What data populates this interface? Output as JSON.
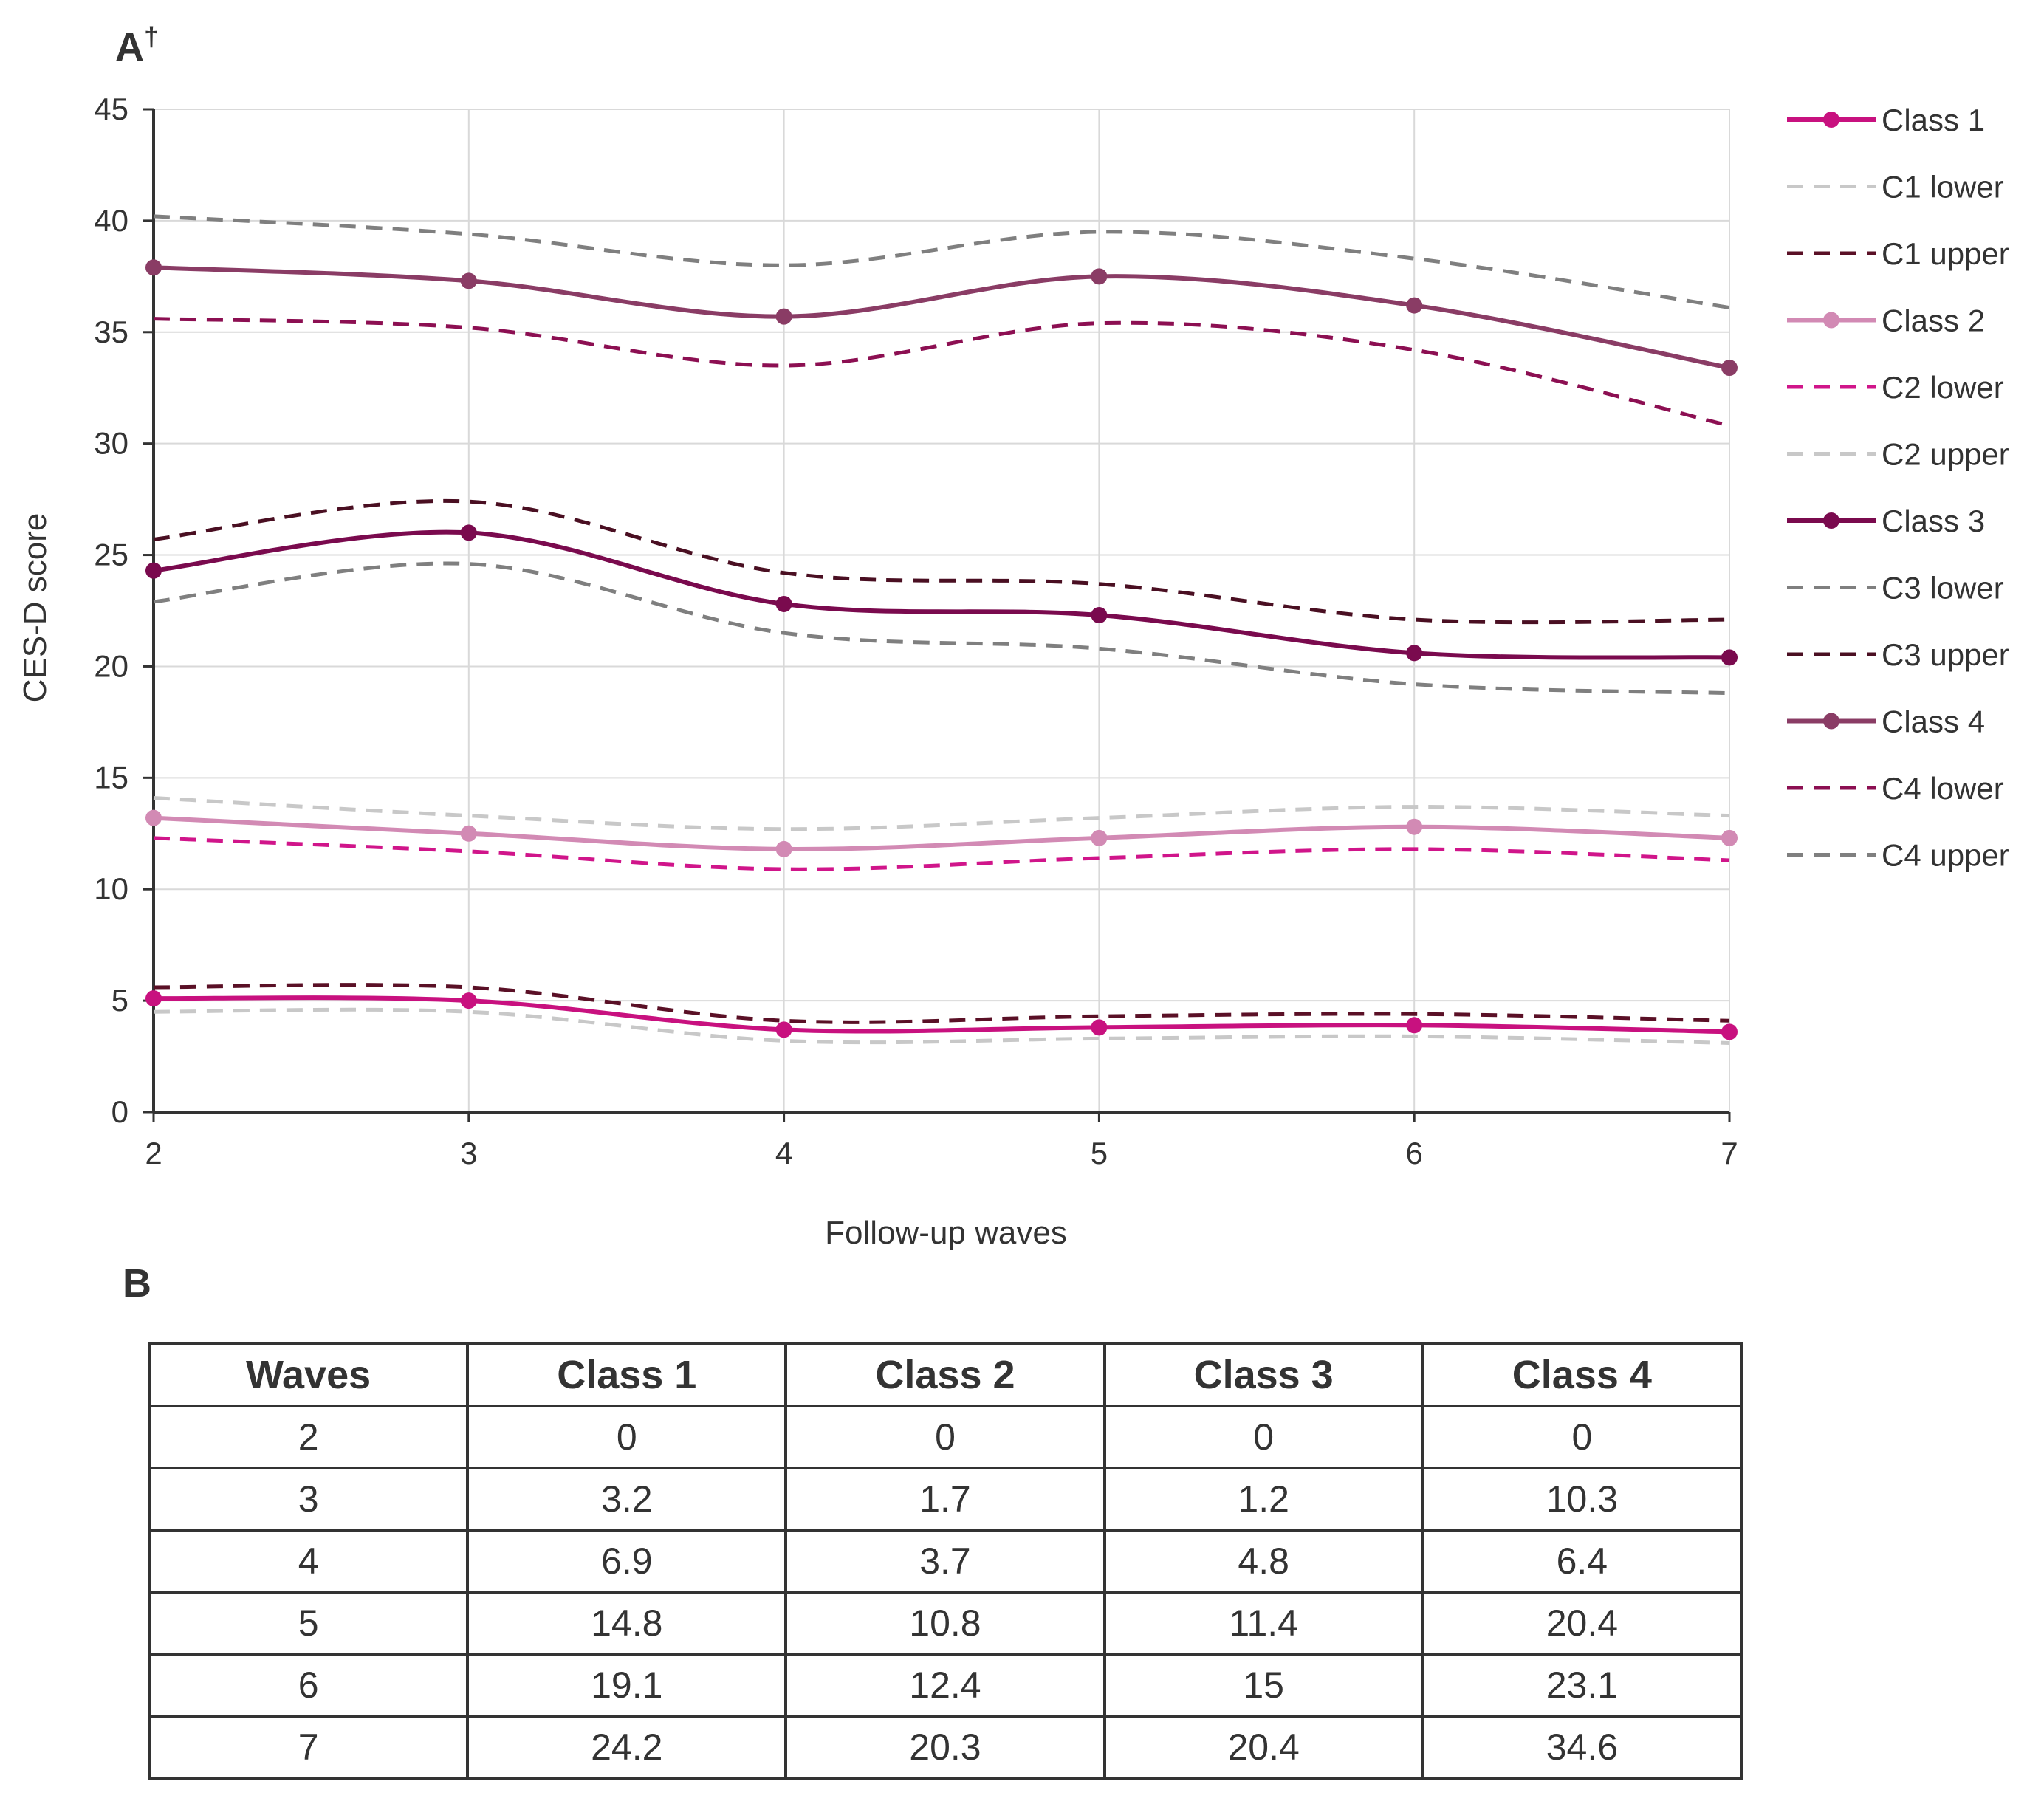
{
  "panel_a_label": "A",
  "panel_a_mark": "†",
  "panel_b_label": "B",
  "chart_data": {
    "type": "line",
    "title": "",
    "xlabel": "Follow-up waves",
    "ylabel": "CES-D score",
    "x": [
      2,
      3,
      4,
      5,
      6,
      7
    ],
    "xlim": [
      2,
      7
    ],
    "ylim": [
      0,
      45
    ],
    "y_ticks": [
      0,
      5,
      10,
      15,
      20,
      25,
      30,
      35,
      40,
      45
    ],
    "grid": "vertical and horizontal",
    "legend_position": "right",
    "series": [
      {
        "name": "Class 1",
        "style": "solid",
        "markers": true,
        "color": "#C8117F",
        "values": [
          5.1,
          5.0,
          3.7,
          3.8,
          3.9,
          3.6
        ]
      },
      {
        "name": "C1 lower",
        "style": "dashed",
        "markers": false,
        "color": "#C8C8C8",
        "values": [
          4.5,
          4.5,
          3.2,
          3.3,
          3.4,
          3.1
        ]
      },
      {
        "name": "C1 upper",
        "style": "dashed",
        "markers": false,
        "color": "#5A1026",
        "values": [
          5.6,
          5.6,
          4.1,
          4.3,
          4.4,
          4.1
        ]
      },
      {
        "name": "Class 2",
        "style": "solid",
        "markers": true,
        "color": "#D28AB4",
        "values": [
          13.2,
          12.5,
          11.8,
          12.3,
          12.8,
          12.3
        ]
      },
      {
        "name": "C2 lower",
        "style": "dashed",
        "markers": false,
        "color": "#D0158A",
        "values": [
          12.3,
          11.7,
          10.9,
          11.4,
          11.8,
          11.3
        ]
      },
      {
        "name": "C2 upper",
        "style": "dashed",
        "markers": false,
        "color": "#C8C8C8",
        "values": [
          14.1,
          13.3,
          12.7,
          13.2,
          13.7,
          13.3
        ]
      },
      {
        "name": "Class 3",
        "style": "solid",
        "markers": true,
        "color": "#7A0A4E",
        "values": [
          24.3,
          26.0,
          22.8,
          22.3,
          20.6,
          20.4
        ]
      },
      {
        "name": "C3 lower",
        "style": "dashed",
        "markers": false,
        "color": "#7F7F7F",
        "values": [
          22.9,
          24.6,
          21.5,
          20.8,
          19.2,
          18.8
        ]
      },
      {
        "name": "C3 upper",
        "style": "dashed",
        "markers": false,
        "color": "#4A0F22",
        "values": [
          25.7,
          27.4,
          24.2,
          23.7,
          22.1,
          22.1
        ]
      },
      {
        "name": "Class 4",
        "style": "solid",
        "markers": true,
        "color": "#8A3C65",
        "values": [
          37.9,
          37.3,
          35.7,
          37.5,
          36.2,
          33.4
        ]
      },
      {
        "name": "C4 lower",
        "style": "dashed",
        "markers": false,
        "color": "#8C0F52",
        "values": [
          35.6,
          35.2,
          33.5,
          35.4,
          34.2,
          30.8
        ]
      },
      {
        "name": "C4 upper",
        "style": "dashed",
        "markers": false,
        "color": "#7F7F7F",
        "values": [
          40.2,
          39.4,
          38.0,
          39.5,
          38.3,
          36.1
        ]
      }
    ]
  },
  "table": {
    "headers": [
      "Waves",
      "Class 1",
      "Class 2",
      "Class 3",
      "Class 4"
    ],
    "rows": [
      [
        "2",
        "0",
        "0",
        "0",
        "0"
      ],
      [
        "3",
        "3.2",
        "1.7",
        "1.2",
        "10.3"
      ],
      [
        "4",
        "6.9",
        "3.7",
        "4.8",
        "6.4"
      ],
      [
        "5",
        "14.8",
        "10.8",
        "11.4",
        "20.4"
      ],
      [
        "6",
        "19.1",
        "12.4",
        "15",
        "23.1"
      ],
      [
        "7",
        "24.2",
        "20.3",
        "20.4",
        "34.6"
      ]
    ]
  }
}
